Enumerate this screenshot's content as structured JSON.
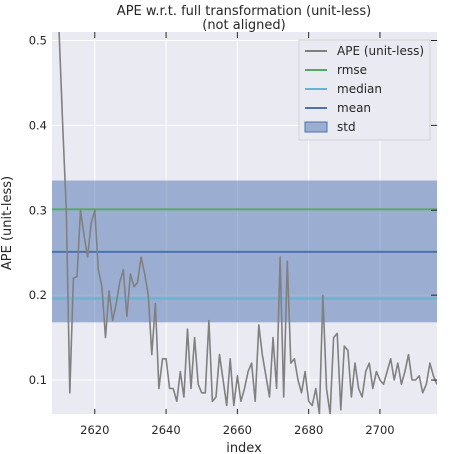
{
  "chart_data": {
    "type": "line",
    "title": "APE w.r.t. full transformation (unit-less)",
    "subtitle": "(not aligned)",
    "xlabel": "index",
    "ylabel": "APE (unit-less)",
    "xlim": [
      2608,
      2716
    ],
    "ylim": [
      0.06,
      0.51
    ],
    "xticks": [
      2620,
      2640,
      2660,
      2680,
      2700
    ],
    "yticks": [
      0.1,
      0.2,
      0.3,
      0.4,
      0.5
    ],
    "grid": true,
    "legend_position": "top-right",
    "legend": [
      {
        "label": "APE (unit-less)",
        "kind": "line",
        "color": "#808080"
      },
      {
        "label": "rmse",
        "kind": "line",
        "color": "#55a868"
      },
      {
        "label": "median",
        "kind": "line",
        "color": "#64b5cd"
      },
      {
        "label": "mean",
        "kind": "line",
        "color": "#4c72b0"
      },
      {
        "label": "std",
        "kind": "patch",
        "color": "#4c72b0"
      }
    ],
    "stats": {
      "rmse": 0.301,
      "median": 0.196,
      "mean": 0.251,
      "std_low": 0.168,
      "std_high": 0.335
    },
    "series": [
      {
        "name": "APE (unit-less)",
        "color": "#808080",
        "x": [
          2610,
          2611,
          2612,
          2613,
          2614,
          2615,
          2616,
          2617,
          2618,
          2619,
          2620,
          2621,
          2622,
          2623,
          2624,
          2625,
          2626,
          2627,
          2628,
          2629,
          2630,
          2631,
          2632,
          2633,
          2634,
          2635,
          2636,
          2637,
          2638,
          2639,
          2640,
          2641,
          2642,
          2643,
          2644,
          2645,
          2646,
          2647,
          2648,
          2649,
          2650,
          2651,
          2652,
          2653,
          2654,
          2655,
          2656,
          2657,
          2658,
          2659,
          2660,
          2661,
          2662,
          2663,
          2664,
          2665,
          2666,
          2667,
          2668,
          2669,
          2670,
          2671,
          2672,
          2673,
          2674,
          2675,
          2676,
          2677,
          2678,
          2679,
          2680,
          2681,
          2682,
          2683,
          2684,
          2685,
          2686,
          2687,
          2688,
          2689,
          2690,
          2691,
          2692,
          2693,
          2694,
          2695,
          2696,
          2697,
          2698,
          2699,
          2700,
          2701,
          2702,
          2703,
          2704,
          2705,
          2706,
          2707,
          2708,
          2709,
          2710,
          2711,
          2712,
          2713,
          2714,
          2715,
          2716
        ],
        "y": [
          0.51,
          0.4,
          0.3,
          0.085,
          0.22,
          0.222,
          0.3,
          0.27,
          0.245,
          0.285,
          0.3,
          0.23,
          0.21,
          0.15,
          0.205,
          0.17,
          0.19,
          0.215,
          0.23,
          0.175,
          0.225,
          0.21,
          0.215,
          0.245,
          0.225,
          0.2,
          0.13,
          0.19,
          0.09,
          0.125,
          0.125,
          0.09,
          0.09,
          0.075,
          0.11,
          0.08,
          0.16,
          0.09,
          0.15,
          0.095,
          0.085,
          0.085,
          0.17,
          0.075,
          0.08,
          0.13,
          0.1,
          0.07,
          0.125,
          0.07,
          0.105,
          0.075,
          0.09,
          0.11,
          0.12,
          0.075,
          0.165,
          0.13,
          0.105,
          0.08,
          0.15,
          0.09,
          0.245,
          0.08,
          0.24,
          0.12,
          0.125,
          0.1,
          0.085,
          0.11,
          0.075,
          0.07,
          0.09,
          0.06,
          0.2,
          0.09,
          0.06,
          0.15,
          0.155,
          0.065,
          0.14,
          0.135,
          0.08,
          0.12,
          0.09,
          0.08,
          0.11,
          0.12,
          0.09,
          0.11,
          0.1,
          0.095,
          0.11,
          0.125,
          0.1,
          0.12,
          0.095,
          0.11,
          0.13,
          0.1,
          0.1,
          0.105,
          0.085,
          0.095,
          0.12,
          0.105,
          0.095
        ]
      }
    ]
  }
}
